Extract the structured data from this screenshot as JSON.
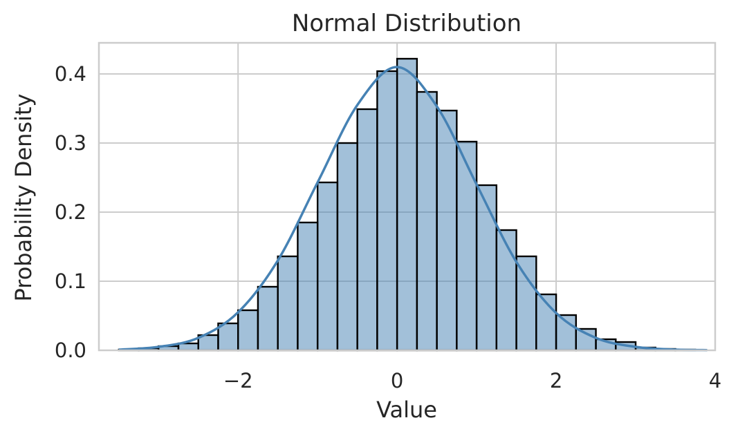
{
  "chart_data": {
    "type": "bar",
    "subtype": "histogram-with-kde",
    "title": "Normal Distribution",
    "xlabel": "Value",
    "ylabel": "Probability Density",
    "xlim": [
      -3.75,
      4.0
    ],
    "ylim": [
      0.0,
      0.445
    ],
    "xticks": [
      -2,
      0,
      2,
      4
    ],
    "xtick_labels": [
      "−2",
      "0",
      "2",
      "4"
    ],
    "yticks": [
      0.0,
      0.1,
      0.2,
      0.3,
      0.4
    ],
    "ytick_labels": [
      "0.0",
      "0.1",
      "0.2",
      "0.3",
      "0.4"
    ],
    "grid": true,
    "bar_color": "#4682b4",
    "line_color": "#4682b4",
    "bins": {
      "edges": [
        -3.5,
        -3.25,
        -3.0,
        -2.75,
        -2.5,
        -2.25,
        -2.0,
        -1.75,
        -1.5,
        -1.25,
        -1.0,
        -0.75,
        -0.5,
        -0.25,
        0.0,
        0.25,
        0.5,
        0.75,
        1.0,
        1.25,
        1.5,
        1.75,
        2.0,
        2.25,
        2.5,
        2.75,
        3.0,
        3.25,
        3.5,
        3.75
      ],
      "density": [
        0.001,
        0.003,
        0.006,
        0.01,
        0.022,
        0.039,
        0.058,
        0.092,
        0.136,
        0.185,
        0.243,
        0.3,
        0.349,
        0.404,
        0.422,
        0.374,
        0.347,
        0.302,
        0.239,
        0.174,
        0.136,
        0.081,
        0.051,
        0.031,
        0.016,
        0.012,
        0.004,
        0.002,
        0.001
      ]
    },
    "kde": {
      "x": [
        -3.5,
        -3.0,
        -2.5,
        -2.0,
        -1.5,
        -1.0,
        -0.5,
        0.0,
        0.5,
        1.0,
        1.5,
        2.0,
        2.5,
        3.0,
        3.5,
        3.9
      ],
      "y": [
        0.001,
        0.005,
        0.018,
        0.055,
        0.13,
        0.243,
        0.355,
        0.41,
        0.353,
        0.24,
        0.128,
        0.054,
        0.018,
        0.005,
        0.001,
        0.0003
      ]
    }
  }
}
